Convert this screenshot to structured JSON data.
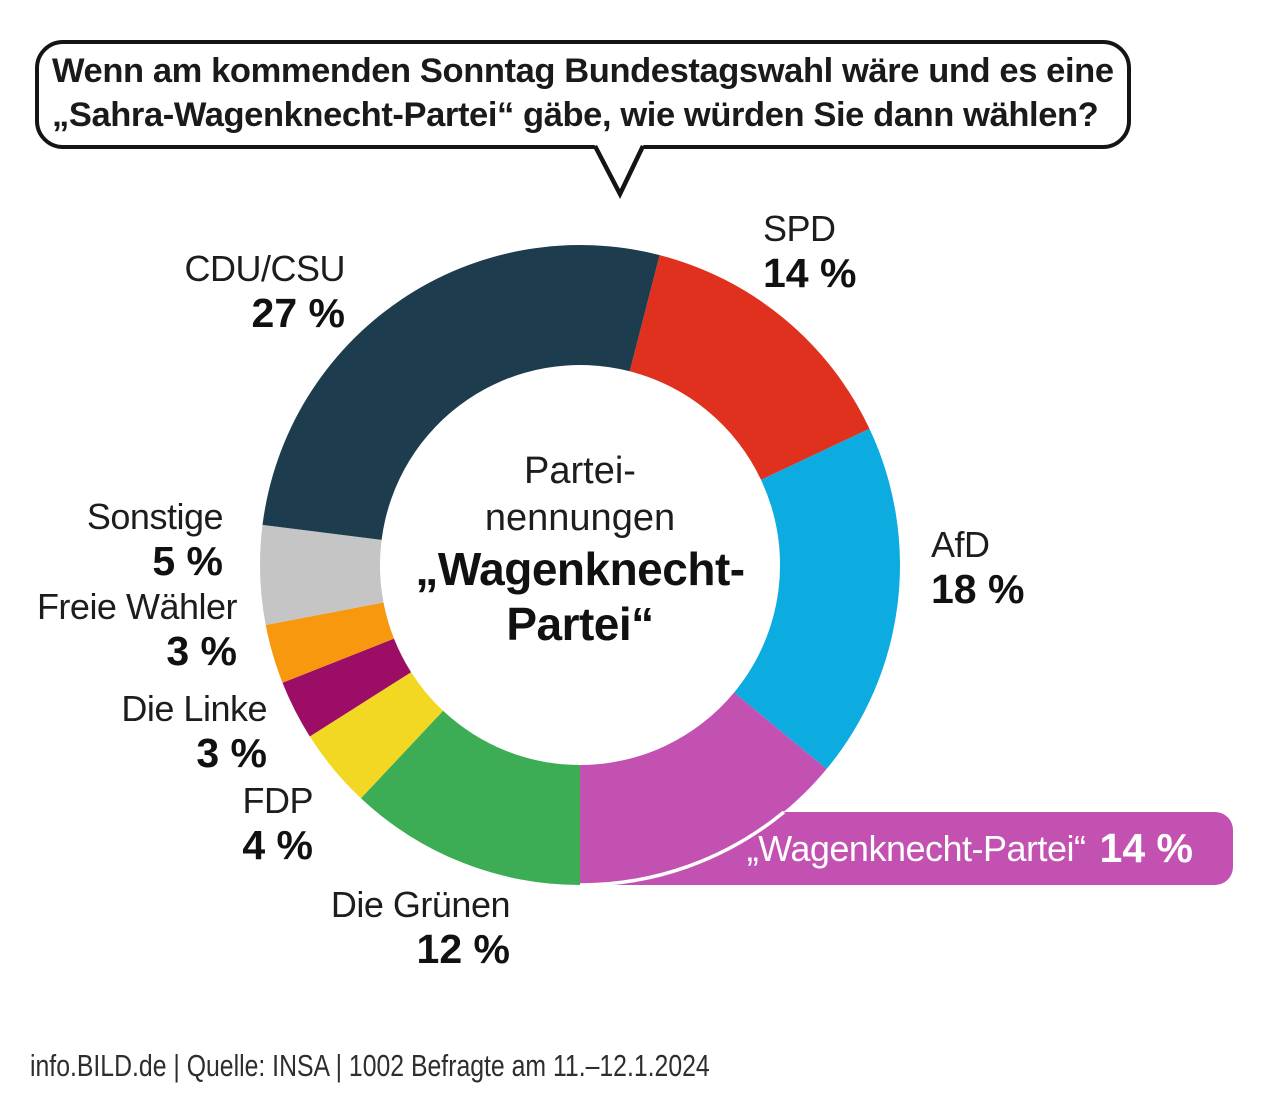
{
  "question_bubble": {
    "line1": "Wenn am kommenden Sonntag Bundestagswahl wäre und es eine",
    "line2": "„Sahra-Wagenknecht-Partei“ gäbe, wie würden Sie dann wählen?"
  },
  "center_label": {
    "line1": "Partei-",
    "line2": "nennungen",
    "line3": "„Wagenknecht-",
    "line4": "Partei“"
  },
  "callouts": {
    "cdu": {
      "name": "CDU/CSU",
      "pct": "27 %"
    },
    "spd": {
      "name": "SPD",
      "pct": "14 %"
    },
    "afd": {
      "name": "AfD",
      "pct": "18 %"
    },
    "sonstige": {
      "name": "Sonstige",
      "pct": "5 %"
    },
    "freie_waehler": {
      "name": "Freie Wähler",
      "pct": "3 %"
    },
    "linke": {
      "name": "Die Linke",
      "pct": "3 %"
    },
    "fdp": {
      "name": "FDP",
      "pct": "4 %"
    },
    "gruene": {
      "name": "Die Grünen",
      "pct": "12 %"
    }
  },
  "highlight_pill": {
    "name": "„Wagenknecht-Partei“",
    "value": "14 %"
  },
  "footer": {
    "source_line": "info.BILD.de | Quelle: INSA | 1002 Befragte am 11.–12.1.2024"
  },
  "chart_data": {
    "type": "pie",
    "donut": true,
    "title": "Wenn am kommenden Sonntag Bundestagswahl wäre und es eine „Sahra-Wagenknecht-Partei“ gäbe, wie würden Sie dann wählen?",
    "center_text": "Partei-nennungen „Wagenknecht-Partei“",
    "unit": "%",
    "start_angle_deg": 14.4,
    "clockwise": true,
    "segments": [
      {
        "id": "spd",
        "label": "SPD",
        "value": 14,
        "display": "14 %",
        "color": "#e0311f"
      },
      {
        "id": "afd",
        "label": "AfD",
        "value": 18,
        "display": "18 %",
        "color": "#0cace0"
      },
      {
        "id": "wagenknecht",
        "label": "„Wagenknecht-Partei“",
        "value": 14,
        "display": "14 %",
        "color": "#c351b1",
        "highlighted": true
      },
      {
        "id": "gruene",
        "label": "Die Grünen",
        "value": 12,
        "display": "12 %",
        "color": "#3dad55"
      },
      {
        "id": "fdp",
        "label": "FDP",
        "value": 4,
        "display": "4 %",
        "color": "#f2d723"
      },
      {
        "id": "linke",
        "label": "Die Linke",
        "value": 3,
        "display": "3 %",
        "color": "#9c0e65"
      },
      {
        "id": "freie-waehler",
        "label": "Freie Wähler",
        "value": 3,
        "display": "3 %",
        "color": "#f8980e"
      },
      {
        "id": "sonstige",
        "label": "Sonstige",
        "value": 5,
        "display": "5 %",
        "color": "#c5c5c5"
      },
      {
        "id": "cdu-csu",
        "label": "CDU/CSU",
        "value": 27,
        "display": "27 %",
        "color": "#1d3d4e"
      }
    ],
    "source": "info.BILD.de | Quelle: INSA | 1002 Befragte am 11.–12.1.2024"
  }
}
